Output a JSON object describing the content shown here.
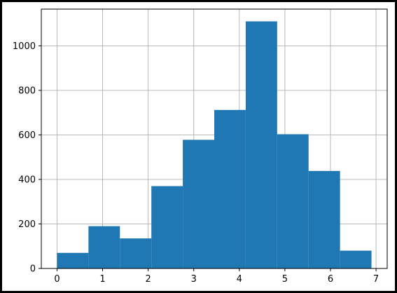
{
  "chart_data": {
    "type": "bar",
    "bins": [
      {
        "x0": 0.0,
        "x1": 0.69,
        "count": 70
      },
      {
        "x0": 0.69,
        "x1": 1.38,
        "count": 190
      },
      {
        "x0": 1.38,
        "x1": 2.07,
        "count": 135
      },
      {
        "x0": 2.07,
        "x1": 2.76,
        "count": 370
      },
      {
        "x0": 2.76,
        "x1": 3.45,
        "count": 578
      },
      {
        "x0": 3.45,
        "x1": 4.14,
        "count": 712
      },
      {
        "x0": 4.14,
        "x1": 4.83,
        "count": 1110
      },
      {
        "x0": 4.83,
        "x1": 5.52,
        "count": 603
      },
      {
        "x0": 5.52,
        "x1": 6.21,
        "count": 438
      },
      {
        "x0": 6.21,
        "x1": 6.9,
        "count": 80
      }
    ],
    "xlim": [
      -0.345,
      7.245
    ],
    "ylim": [
      0,
      1165
    ],
    "xticks": [
      0,
      1,
      2,
      3,
      4,
      5,
      6,
      7
    ],
    "yticks": [
      0,
      200,
      400,
      600,
      800,
      1000
    ],
    "grid": true,
    "bar_color": "#1f77b4",
    "grid_color": "#b0b0b0",
    "title": "",
    "xlabel": "",
    "ylabel": ""
  }
}
